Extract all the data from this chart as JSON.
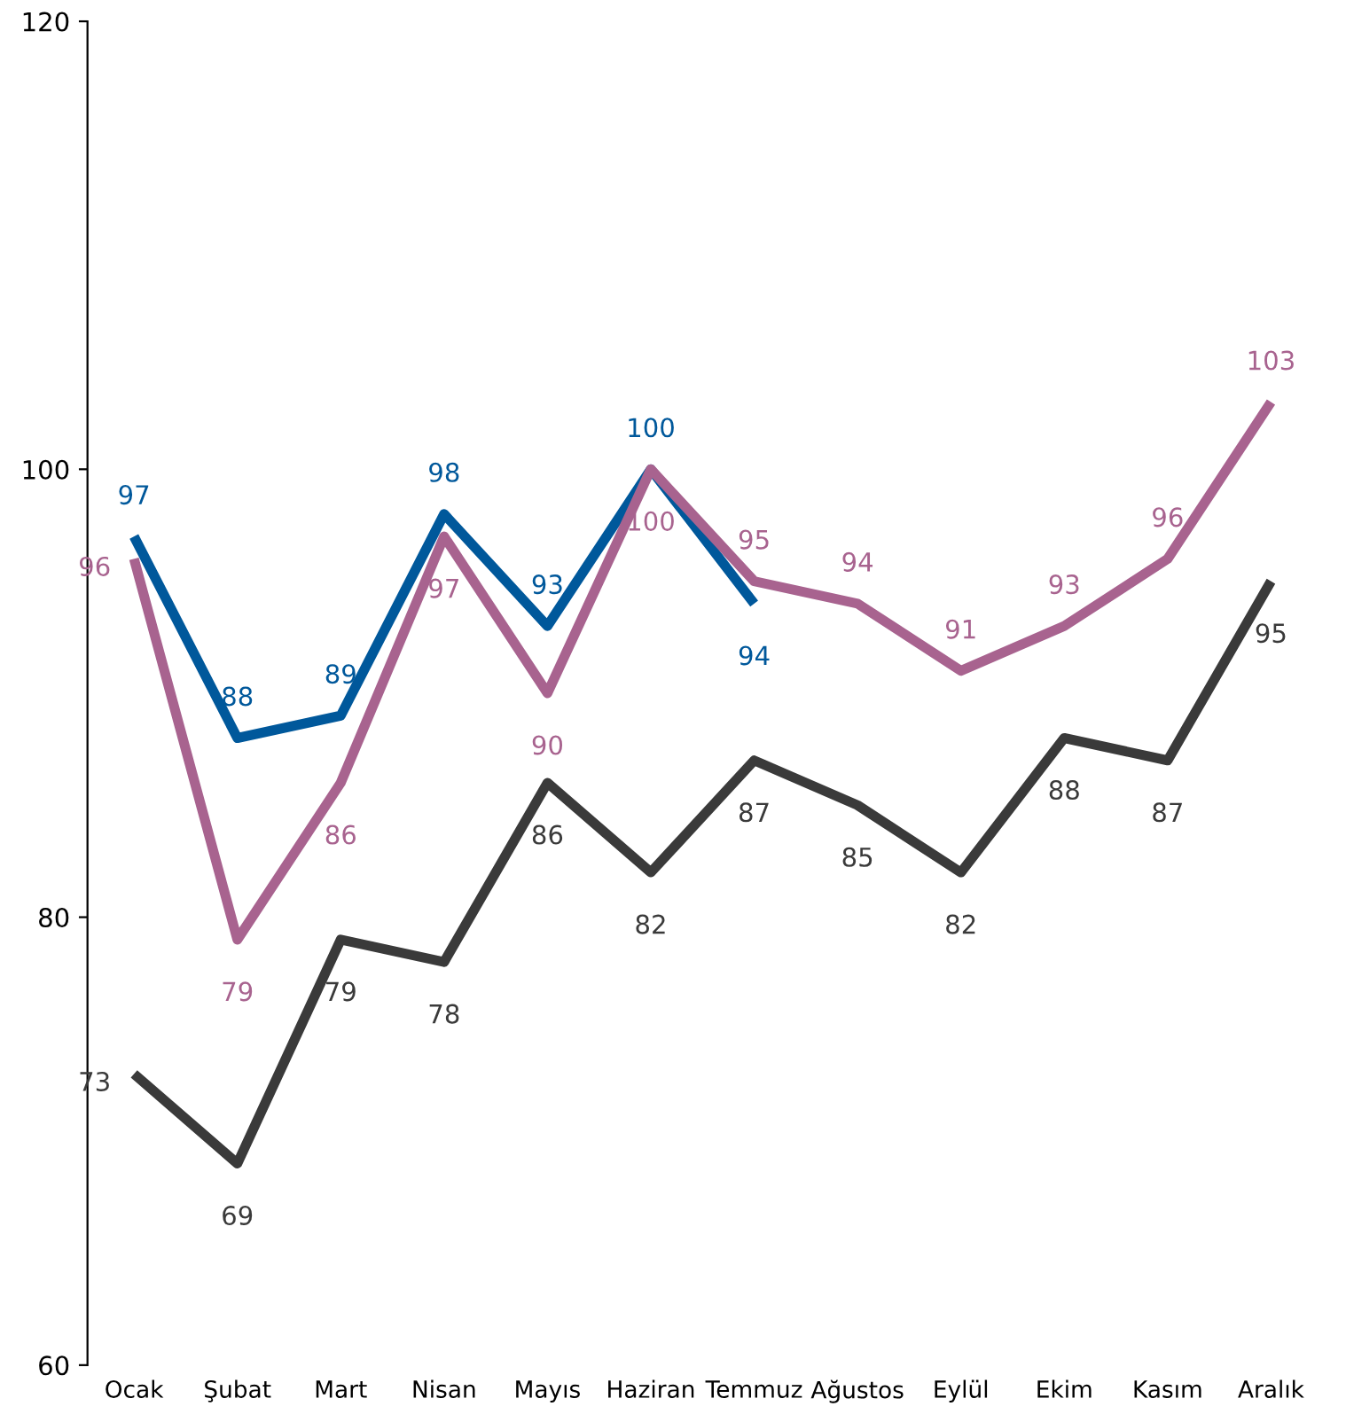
{
  "chart_data": {
    "type": "line",
    "categories": [
      "Ocak",
      "Şubat",
      "Mart",
      "Nisan",
      "Mayıs",
      "Haziran",
      "Temmuz",
      "Ağustos",
      "Eylül",
      "Ekim",
      "Kasım",
      "Aralık"
    ],
    "series": [
      {
        "color": "#00589b",
        "values": [
          97,
          88,
          89,
          98,
          93,
          100,
          94,
          null,
          null,
          null,
          null,
          null
        ]
      },
      {
        "color": "#a8638f",
        "values": [
          96,
          79,
          86,
          97,
          90,
          100,
          95,
          94,
          91,
          93,
          96,
          103
        ]
      },
      {
        "color": "#3a3a3a",
        "values": [
          73,
          69,
          79,
          78,
          86,
          82,
          87,
          85,
          82,
          88,
          87,
          95
        ]
      }
    ],
    "ylim": [
      60,
      120
    ],
    "yticks": [
      60,
      80,
      100,
      120
    ],
    "data_labels": true,
    "grid": false,
    "legend": false,
    "marker": "none",
    "line_style": "solid"
  }
}
